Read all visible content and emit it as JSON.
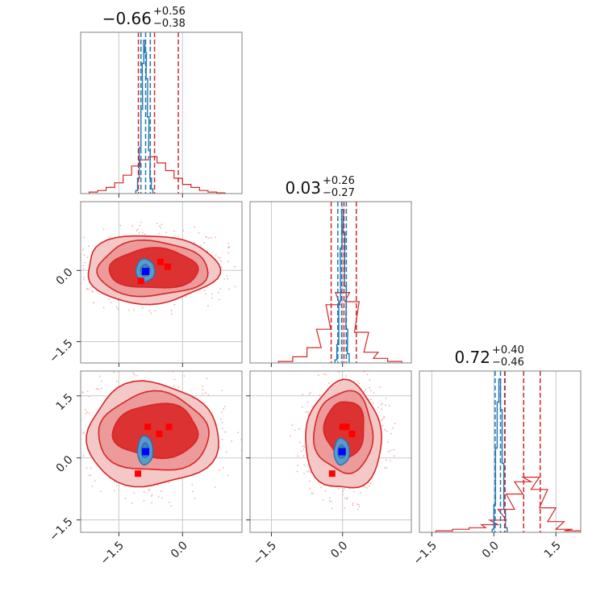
{
  "chart_data": {
    "type": "corner",
    "parameters": 3,
    "grid": true,
    "colors": {
      "red": "#d62728",
      "red_fill_light": "#f5c8c8",
      "red_fill_mid": "#ec9a9a",
      "red_fill_dark": "#dc3232",
      "blue": "#1f77b4",
      "blue_fill": "#5c9ac9",
      "marker_blue": "#0000ff",
      "marker_red": "#ff0000"
    },
    "ticks": {
      "p1": {
        "values": [
          -1.5,
          0.0
        ],
        "labels": [
          "−1.5",
          "0.0"
        ]
      },
      "p2": {
        "values": [
          -1.5,
          0.0
        ],
        "labels": [
          "−1.5",
          "0.0"
        ]
      },
      "p3": {
        "values": [
          -1.5,
          0.0,
          1.5
        ],
        "labels": [
          "−1.5",
          "0.0",
          "1.5"
        ]
      }
    },
    "titles": [
      {
        "value": "−0.66",
        "plus": "+0.56",
        "minus": "−0.38"
      },
      {
        "value": "0.03",
        "plus": "+0.26",
        "minus": "−0.27"
      },
      {
        "value": "0.72",
        "plus": "+0.40",
        "minus": "−0.46"
      }
    ],
    "marginals": [
      {
        "param": "p1",
        "xlim": [
          -2.4,
          1.4
        ],
        "red_lines": [
          -1.04,
          -0.66,
          -0.1
        ],
        "blue_lines": [
          -0.98,
          -0.87,
          -0.76
        ],
        "red_hist": [
          [
            -2.1,
            0.01
          ],
          [
            -1.9,
            0.02
          ],
          [
            -1.7,
            0.04
          ],
          [
            -1.5,
            0.07
          ],
          [
            -1.3,
            0.12
          ],
          [
            -1.1,
            0.18
          ],
          [
            -0.9,
            0.22
          ],
          [
            -0.7,
            0.24
          ],
          [
            -0.5,
            0.2
          ],
          [
            -0.3,
            0.15
          ],
          [
            -0.1,
            0.1
          ],
          [
            0.1,
            0.06
          ],
          [
            0.3,
            0.04
          ],
          [
            0.5,
            0.02
          ],
          [
            0.7,
            0.01
          ],
          [
            0.9,
            0.005
          ]
        ],
        "blue_hist": [
          [
            -1.08,
            0.02
          ],
          [
            -1.04,
            0.1
          ],
          [
            -1.0,
            0.3
          ],
          [
            -0.96,
            0.55
          ],
          [
            -0.93,
            0.85
          ],
          [
            -0.9,
            1.0
          ],
          [
            -0.87,
            0.92
          ],
          [
            -0.84,
            0.75
          ],
          [
            -0.81,
            0.5
          ],
          [
            -0.78,
            0.28
          ],
          [
            -0.75,
            0.1
          ],
          [
            -0.72,
            0.03
          ]
        ]
      },
      {
        "param": "p2",
        "xlim": [
          -1.95,
          1.45
        ],
        "red_lines": [
          -0.24,
          0.03,
          0.29
        ],
        "blue_lines": [
          -0.1,
          -0.02,
          0.08
        ],
        "red_hist": [
          [
            -1.2,
            0.01
          ],
          [
            -0.9,
            0.04
          ],
          [
            -0.6,
            0.1
          ],
          [
            -0.4,
            0.22
          ],
          [
            -0.2,
            0.38
          ],
          [
            0.0,
            0.46
          ],
          [
            0.2,
            0.4
          ],
          [
            0.4,
            0.2
          ],
          [
            0.6,
            0.07
          ],
          [
            0.8,
            0.03
          ],
          [
            1.1,
            0.01
          ]
        ],
        "blue_hist": [
          [
            -0.14,
            0.02
          ],
          [
            -0.1,
            0.12
          ],
          [
            -0.06,
            0.4
          ],
          [
            -0.03,
            0.75
          ],
          [
            0.0,
            1.0
          ],
          [
            0.03,
            0.85
          ],
          [
            0.06,
            0.5
          ],
          [
            0.09,
            0.22
          ],
          [
            0.12,
            0.06
          ]
        ]
      },
      {
        "param": "p3",
        "xlim": [
          -1.8,
          2.1
        ],
        "red_lines": [
          0.26,
          0.72,
          1.12
        ],
        "blue_lines": [
          0.03,
          0.16,
          0.27
        ],
        "red_hist": [
          [
            -1.2,
            0.01
          ],
          [
            -0.8,
            0.02
          ],
          [
            -0.4,
            0.03
          ],
          [
            -0.1,
            0.05
          ],
          [
            0.1,
            0.08
          ],
          [
            0.3,
            0.15
          ],
          [
            0.5,
            0.25
          ],
          [
            0.7,
            0.33
          ],
          [
            0.9,
            0.36
          ],
          [
            1.1,
            0.28
          ],
          [
            1.3,
            0.16
          ],
          [
            1.5,
            0.07
          ],
          [
            1.7,
            0.02
          ],
          [
            1.9,
            0.01
          ]
        ],
        "blue_hist": [
          [
            -0.02,
            0.02
          ],
          [
            0.02,
            0.18
          ],
          [
            0.06,
            0.55
          ],
          [
            0.1,
            0.85
          ],
          [
            0.14,
            1.0
          ],
          [
            0.18,
            0.8
          ],
          [
            0.22,
            0.45
          ],
          [
            0.26,
            0.15
          ],
          [
            0.3,
            0.03
          ]
        ]
      }
    ],
    "joint": [
      {
        "x": "p1",
        "y": "p2",
        "xlim": [
          -2.4,
          1.4
        ],
        "ylim": [
          -1.95,
          1.45
        ],
        "red_contours": [
          {
            "level": "outer",
            "center": [
              -0.75,
              0.03
            ],
            "rx": 1.55,
            "ry": 0.72
          },
          {
            "level": "middle",
            "center": [
              -0.72,
              0.03
            ],
            "rx": 1.3,
            "ry": 0.58
          },
          {
            "level": "inner",
            "center": [
              -0.68,
              0.03
            ],
            "rx": 1.05,
            "ry": 0.42
          }
        ],
        "blue_contours": [
          {
            "level": "outer",
            "center": [
              -0.88,
              0.0
            ],
            "rx": 0.22,
            "ry": 0.24
          },
          {
            "level": "inner",
            "center": [
              -0.88,
              0.0
            ],
            "rx": 0.11,
            "ry": 0.12
          }
        ],
        "markers_red": [
          [
            -0.52,
            0.18
          ],
          [
            -0.35,
            0.08
          ],
          [
            -0.98,
            -0.22
          ]
        ],
        "marker_blue": [
          -0.87,
          -0.02
        ]
      },
      {
        "x": "p1",
        "y": "p3",
        "xlim": [
          -2.4,
          1.4
        ],
        "ylim": [
          -1.8,
          2.1
        ],
        "red_contours": [
          {
            "level": "outer",
            "center": [
              -0.72,
              0.55
            ],
            "rx": 1.55,
            "ry": 1.25
          },
          {
            "level": "middle",
            "center": [
              -0.68,
              0.6
            ],
            "rx": 1.3,
            "ry": 0.95
          },
          {
            "level": "inner",
            "center": [
              -0.62,
              0.65
            ],
            "rx": 1.0,
            "ry": 0.65
          }
        ],
        "blue_contours": [
          {
            "level": "outer",
            "center": [
              -0.88,
              0.18
            ],
            "rx": 0.18,
            "ry": 0.35
          },
          {
            "level": "inner",
            "center": [
              -0.88,
              0.18
            ],
            "rx": 0.09,
            "ry": 0.18
          }
        ],
        "markers_red": [
          [
            -0.82,
            0.75
          ],
          [
            -0.32,
            0.75
          ],
          [
            -0.55,
            0.58
          ],
          [
            -1.05,
            -0.38
          ]
        ],
        "marker_blue": [
          -0.87,
          0.15
        ]
      },
      {
        "x": "p2",
        "y": "p3",
        "xlim": [
          -1.95,
          1.45
        ],
        "ylim": [
          -1.8,
          2.1
        ],
        "red_contours": [
          {
            "level": "outer",
            "center": [
              0.02,
              0.5
            ],
            "rx": 0.8,
            "ry": 1.3
          },
          {
            "level": "middle",
            "center": [
              0.03,
              0.62
            ],
            "rx": 0.62,
            "ry": 0.98
          },
          {
            "level": "inner",
            "center": [
              0.05,
              0.7
            ],
            "rx": 0.42,
            "ry": 0.68
          }
        ],
        "blue_contours": [
          {
            "level": "outer",
            "center": [
              -0.02,
              0.15
            ],
            "rx": 0.16,
            "ry": 0.32
          },
          {
            "level": "inner",
            "center": [
              -0.02,
              0.15
            ],
            "rx": 0.08,
            "ry": 0.16
          }
        ],
        "markers_red": [
          [
            0.0,
            0.75
          ],
          [
            0.08,
            0.75
          ],
          [
            0.2,
            0.58
          ],
          [
            -0.22,
            -0.38
          ]
        ],
        "marker_blue": [
          -0.01,
          0.15
        ]
      }
    ]
  }
}
